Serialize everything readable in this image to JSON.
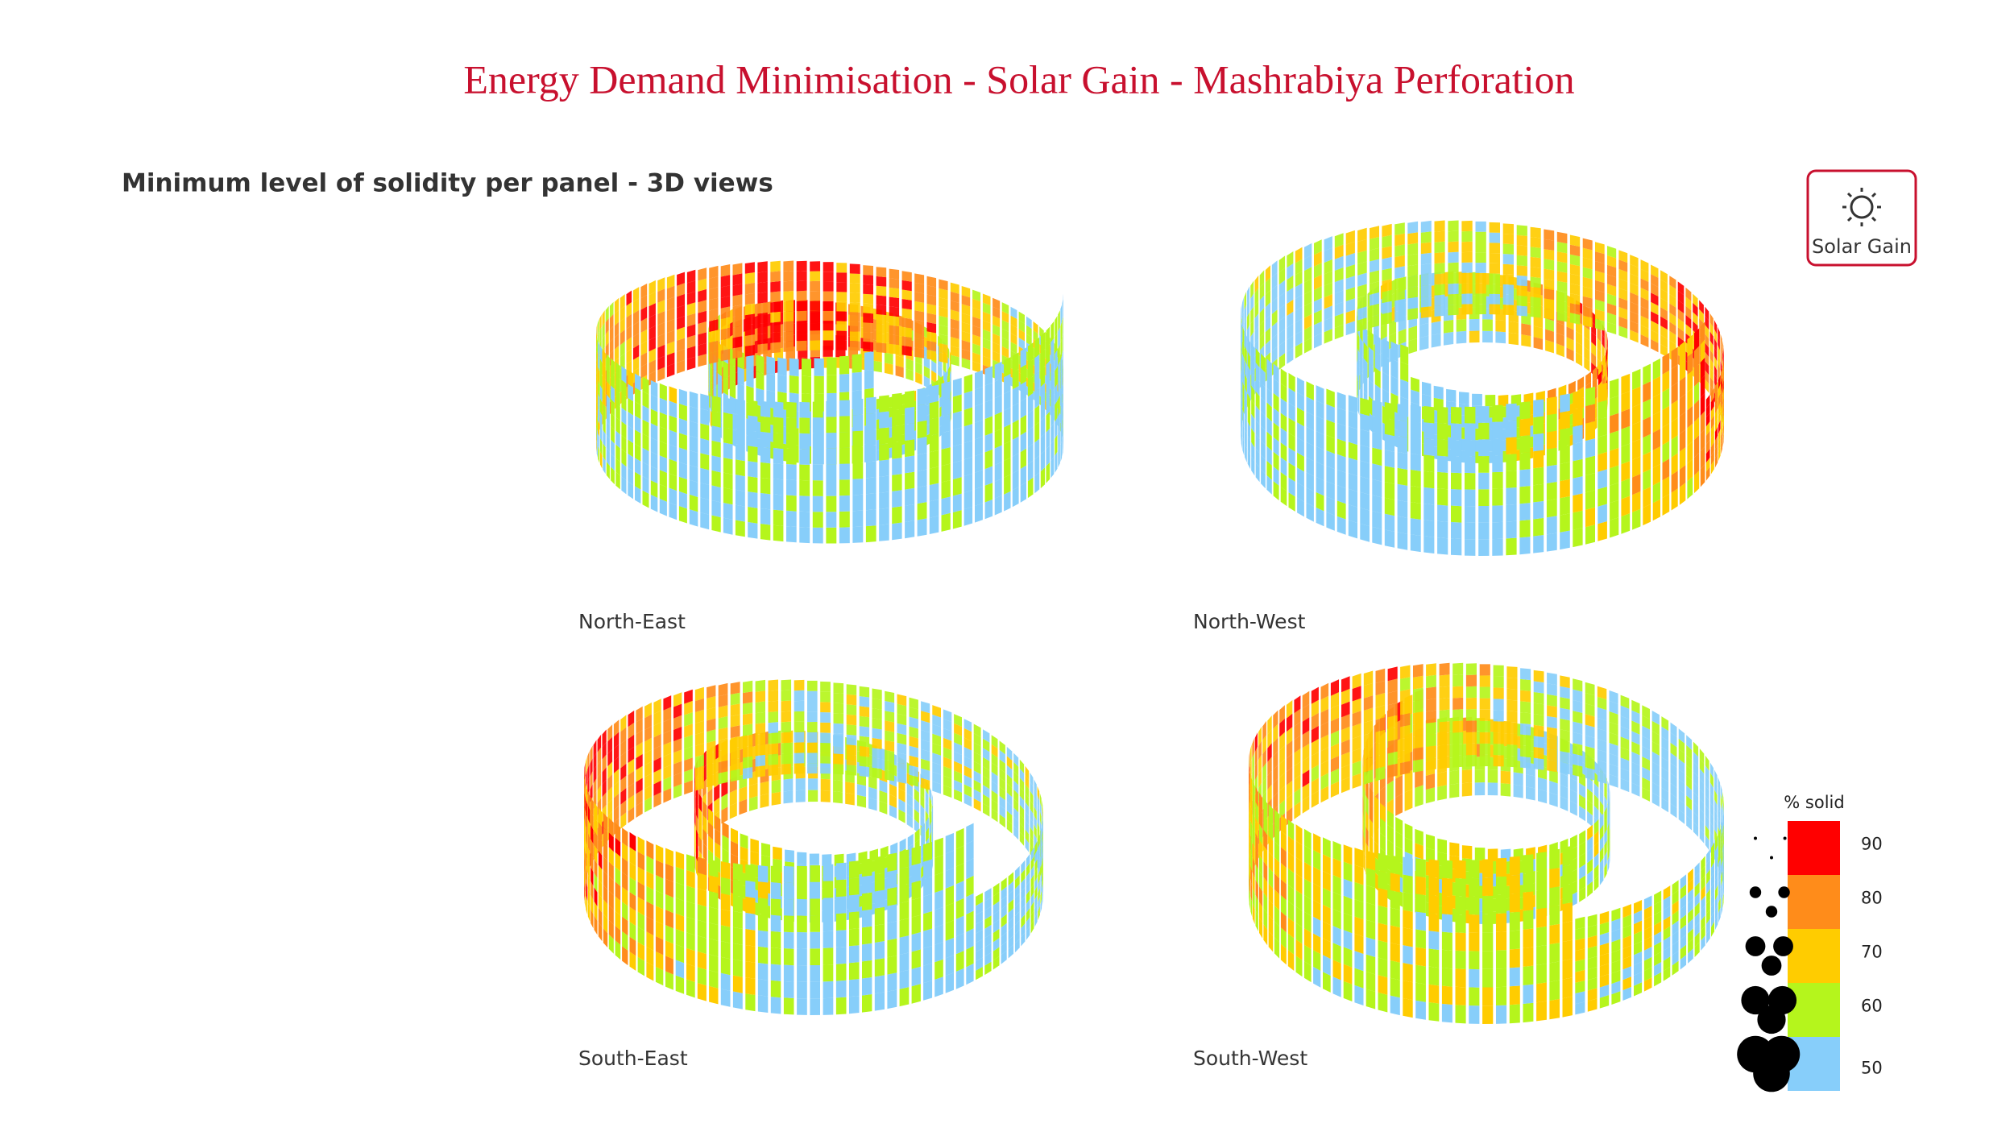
{
  "header": {
    "title": "Energy Demand Minimisation - Solar Gain - Mashrabiya Perforation",
    "subtitle": "Minimum level of solidity per panel - 3D views"
  },
  "badge": {
    "label": "Solar Gain"
  },
  "views": [
    {
      "label": "North-East"
    },
    {
      "label": "North-West"
    },
    {
      "label": "South-East"
    },
    {
      "label": "South-West"
    }
  ],
  "legend": {
    "title": "% solid",
    "items": [
      {
        "value": 90,
        "color": "#ff0000"
      },
      {
        "value": 80,
        "color": "#ff8c1a"
      },
      {
        "value": 70,
        "color": "#ffcc00"
      },
      {
        "value": 60,
        "color": "#b5f51c"
      },
      {
        "value": 50,
        "color": "#87cefa"
      }
    ]
  }
}
